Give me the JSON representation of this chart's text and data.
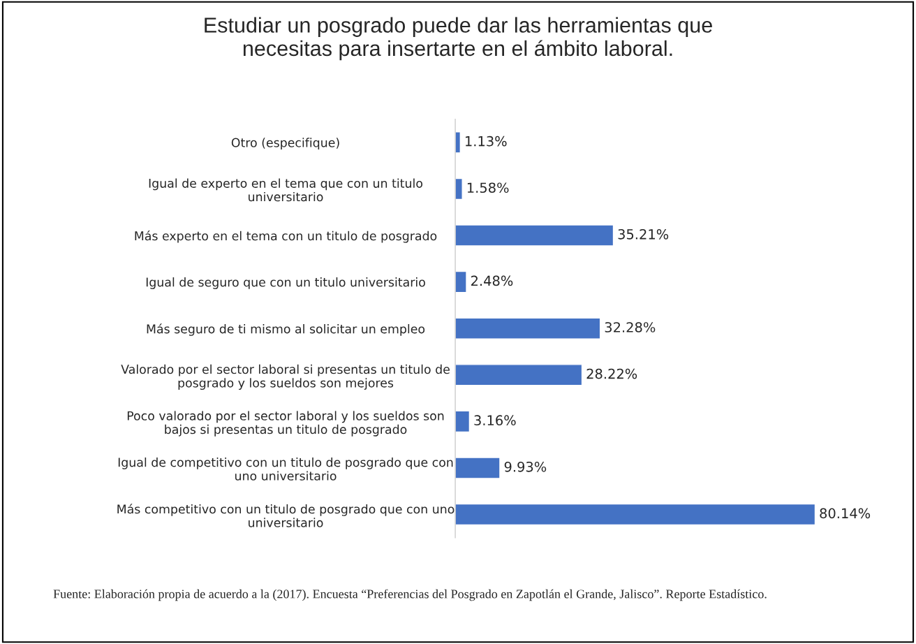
{
  "chart_data": {
    "type": "bar",
    "orientation": "horizontal",
    "title": "Estudiar un posgrado puede dar las herramientas que\nnecesitas para insertarte en el ámbito laboral.",
    "categories": [
      "Otro (especifique)",
      "Igual de experto en el tema que con un titulo\nuniversitario",
      "Más experto en el tema con un titulo de posgrado",
      "Igual de seguro que con un titulo universitario",
      "Más seguro de ti mismo al solicitar un empleo",
      "Valorado por el sector laboral si presentas un titulo de\nposgrado y los sueldos son mejores",
      "Poco valorado por el sector laboral y los sueldos son\nbajos si presentas un titulo de posgrado",
      "Igual de competitivo con un titulo de posgrado que con\nuno universitario",
      "Más competitivo con un titulo de posgrado que con uno\nuniversitario"
    ],
    "values": [
      1.13,
      1.58,
      35.21,
      2.48,
      32.28,
      28.22,
      3.16,
      9.93,
      80.14
    ],
    "value_labels": [
      "1.13%",
      "1.58%",
      "35.21%",
      "2.48%",
      "32.28%",
      "28.22%",
      "3.16%",
      "9.93%",
      "80.14%"
    ],
    "color": "#4472c4",
    "annotations": [
      "Fuente: Elaboración propia de acuerdo a la (2017). Encuesta “Preferencias del Posgrado en Zapotlán el Grande, Jalisco”. Reporte Estadístico."
    ]
  }
}
